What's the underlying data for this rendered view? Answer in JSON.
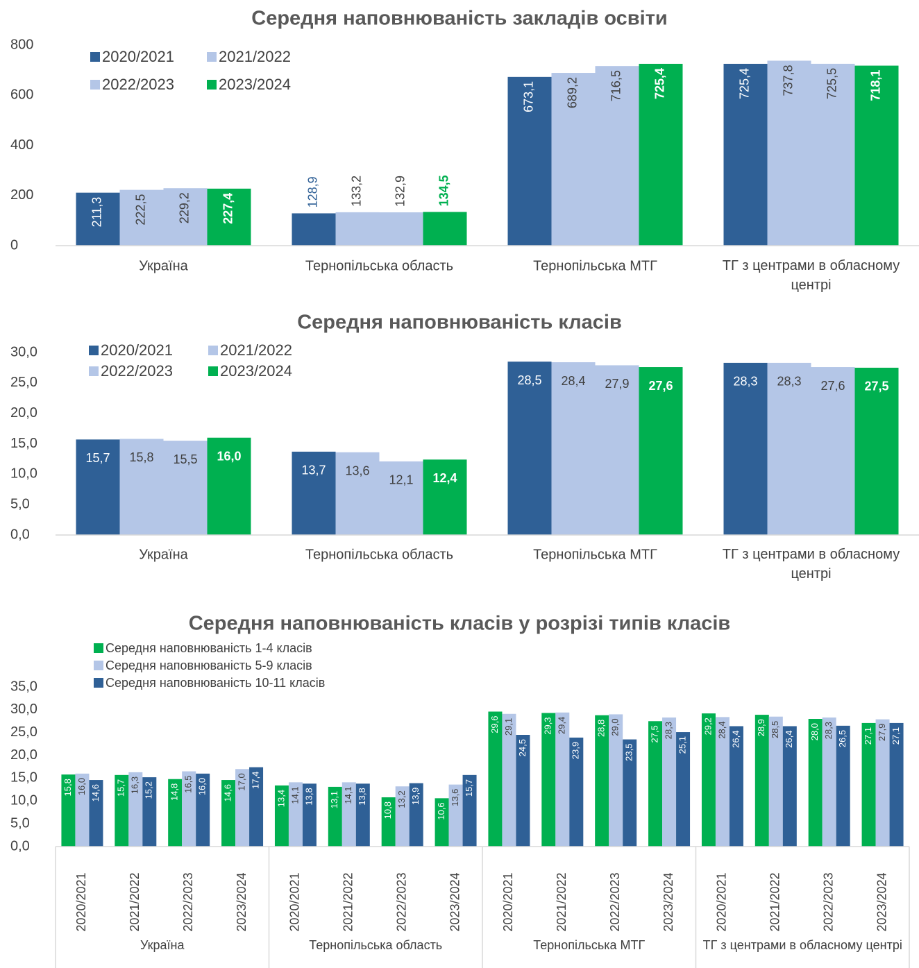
{
  "chart_data": [
    {
      "type": "bar",
      "title": "Середня наповнюваність закладів освіти",
      "categories": [
        "Україна",
        "Тернопільська область",
        "Тернопільська МТГ",
        "ТГ з центрами в обласному центрі"
      ],
      "series": [
        {
          "name": "2020/2021",
          "color": "#2f6096",
          "values": [
            211.3,
            128.9,
            673.1,
            725.4
          ],
          "value_labels": [
            "211,3",
            "128,9",
            "673,1",
            "725,4"
          ]
        },
        {
          "name": "2021/2022",
          "color": "#b4c6e7",
          "values": [
            222.5,
            133.2,
            689.2,
            737.8
          ],
          "value_labels": [
            "222,5",
            "133,2",
            "689,2",
            "737,8"
          ]
        },
        {
          "name": "2022/2023",
          "color": "#b4c6e7",
          "values": [
            229.2,
            132.9,
            716.5,
            725.5
          ],
          "value_labels": [
            "229,2",
            "132,9",
            "716,5",
            "725,5"
          ]
        },
        {
          "name": "2023/2024",
          "color": "#00b050",
          "values": [
            227.4,
            134.5,
            725.4,
            718.1
          ],
          "value_labels": [
            "227,4",
            "134,5",
            "725,4",
            "718,1"
          ]
        }
      ],
      "ylim": [
        0,
        800
      ],
      "yticks": [
        0,
        200,
        400,
        600,
        800
      ],
      "grid": false,
      "legend": "top-left"
    },
    {
      "type": "bar",
      "title": "Середня наповнюваність класів",
      "categories": [
        "Україна",
        "Тернопільська область",
        "Тернопільська МТГ",
        "ТГ з центрами в обласному центрі"
      ],
      "series": [
        {
          "name": "2020/2021",
          "color": "#2f6096",
          "values": [
            15.7,
            13.7,
            28.5,
            28.3
          ],
          "value_labels": [
            "15,7",
            "13,7",
            "28,5",
            "28,3"
          ]
        },
        {
          "name": "2021/2022",
          "color": "#b4c6e7",
          "values": [
            15.8,
            13.6,
            28.4,
            28.3
          ],
          "value_labels": [
            "15,8",
            "13,6",
            "28,4",
            "28,3"
          ]
        },
        {
          "name": "2022/2023",
          "color": "#b4c6e7",
          "values": [
            15.5,
            12.1,
            27.9,
            27.6
          ],
          "value_labels": [
            "15,5",
            "12,1",
            "27,9",
            "27,6"
          ]
        },
        {
          "name": "2023/2024",
          "color": "#00b050",
          "values": [
            16.0,
            12.4,
            27.6,
            27.5
          ],
          "value_labels": [
            "16,0",
            "12,4",
            "27,6",
            "27,5"
          ]
        }
      ],
      "ylim": [
        0,
        30
      ],
      "yticks": [
        {
          "value": 0,
          "label": "0,0"
        },
        {
          "value": 5,
          "label": "5,0"
        },
        {
          "value": 10,
          "label": "10,0"
        },
        {
          "value": 15,
          "label": "15,0"
        },
        {
          "value": 20,
          "label": "20,0"
        },
        {
          "value": 25,
          "label": "25,0"
        },
        {
          "value": 30,
          "label": "30,0"
        }
      ],
      "grid": false,
      "legend": "top-left"
    },
    {
      "type": "bar",
      "title": "Середня наповнюваність класів у розрізі типів класів",
      "categories": [
        "2020/2021",
        "2021/2022",
        "2022/2023",
        "2023/2024",
        "2020/2021",
        "2021/2022",
        "2022/2023",
        "2023/2024",
        "2020/2021",
        "2021/2022",
        "2022/2023",
        "2023/2024",
        "2020/2021",
        "2021/2022",
        "2022/2023",
        "2023/2024"
      ],
      "category_groups": [
        "Україна",
        "Тернопільська область",
        "Тернопільська МТГ",
        "ТГ з центрами в обласному центрі"
      ],
      "series": [
        {
          "name": "Середня наповнюваність 1-4 класів",
          "color": "#00b050",
          "values": [
            15.8,
            15.7,
            14.8,
            14.6,
            13.4,
            13.1,
            10.8,
            10.6,
            29.6,
            29.3,
            28.8,
            27.5,
            29.2,
            28.9,
            28.0,
            27.1
          ],
          "value_labels": [
            "15,8",
            "15,7",
            "14,8",
            "14,6",
            "13,4",
            "13,1",
            "10,8",
            "10,6",
            "29,6",
            "29,3",
            "28,8",
            "27,5",
            "29,2",
            "28,9",
            "28,0",
            "27,1"
          ]
        },
        {
          "name": "Середня наповнюваність 5-9 класів",
          "color": "#b4c6e7",
          "values": [
            16.0,
            16.3,
            16.5,
            17.0,
            14.1,
            14.1,
            13.2,
            13.6,
            29.1,
            29.4,
            29.0,
            28.3,
            28.4,
            28.5,
            28.3,
            27.9
          ],
          "value_labels": [
            "16,0",
            "16,3",
            "16,5",
            "17,0",
            "14,1",
            "14,1",
            "13,2",
            "13,6",
            "29,1",
            "29,4",
            "29,0",
            "28,3",
            "28,4",
            "28,5",
            "28,3",
            "27,9"
          ]
        },
        {
          "name": "Середня наповнюваність 10-11 класів",
          "color": "#2f6096",
          "values": [
            14.6,
            15.2,
            16.0,
            17.4,
            13.8,
            13.8,
            13.9,
            15.7,
            24.5,
            23.9,
            23.5,
            25.1,
            26.4,
            26.4,
            26.5,
            27.1
          ],
          "value_labels": [
            "14,6",
            "15,2",
            "16,0",
            "17,4",
            "13,8",
            "13,8",
            "13,9",
            "15,7",
            "24,5",
            "23,9",
            "23,5",
            "25,1",
            "26,4",
            "26,4",
            "26,5",
            "27,1"
          ]
        }
      ],
      "ylim": [
        0,
        35
      ],
      "yticks": [
        {
          "value": 0,
          "label": "0,0"
        },
        {
          "value": 5,
          "label": "5,0"
        },
        {
          "value": 10,
          "label": "10,0"
        },
        {
          "value": 15,
          "label": "15,0"
        },
        {
          "value": 20,
          "label": "20,0"
        },
        {
          "value": 25,
          "label": "25,0"
        },
        {
          "value": 30,
          "label": "30,0"
        },
        {
          "value": 35,
          "label": "35,0"
        }
      ],
      "grid": false,
      "legend": "top-left"
    }
  ]
}
